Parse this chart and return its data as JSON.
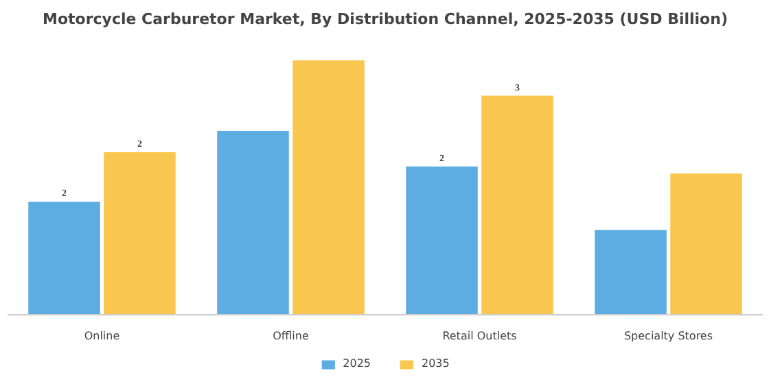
{
  "chart_data": {
    "type": "bar",
    "title": "Motorcycle Carburetor Market, By Distribution Channel, 2025-2035 (USD Billion)",
    "categories": [
      "Online",
      "Offline",
      "Retail Outlets",
      "Specialty Stores"
    ],
    "legend": "bottom",
    "series": [
      {
        "name": "2025",
        "color": "#5dade2",
        "values": [
          1.6,
          2.6,
          2.1,
          1.2
        ],
        "value_labels": [
          "2",
          null,
          "2",
          null
        ]
      },
      {
        "name": "2035",
        "color": "#f9c74f",
        "values": [
          2.3,
          3.6,
          3.1,
          2.0
        ],
        "value_labels": [
          "2",
          null,
          "3",
          null
        ]
      }
    ]
  }
}
